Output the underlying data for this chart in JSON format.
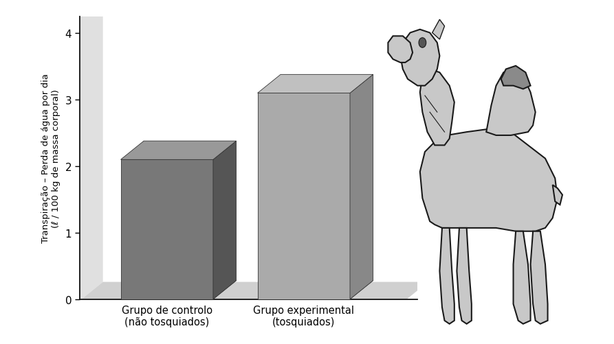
{
  "categories": [
    "Grupo de controlo\n(não tosquiados)",
    "Grupo experimental\n(tosquiados)"
  ],
  "values": [
    2.1,
    3.1
  ],
  "bar_face_colors": [
    "#787878",
    "#aaaaaa"
  ],
  "bar_top_colors": [
    "#999999",
    "#c0c0c0"
  ],
  "bar_side_colors": [
    "#555555",
    "#888888"
  ],
  "background_fig": "#ffffff",
  "background_ax": "#ffffff",
  "wall_color": "#e0e0e0",
  "floor_color": "#d0d0d0",
  "ylabel_line1": "Transpiração – Perda de água por dia",
  "ylabel_line2": "(ℓ / 100 kg de massa corporal)",
  "ylim_max": 4.25,
  "yticks": [
    0,
    1,
    2,
    3,
    4
  ],
  "bar_width": 0.52,
  "depth_x": 0.13,
  "depth_y": 0.28,
  "positions": [
    0.28,
    1.05
  ],
  "xlim_min": 0.05,
  "xlim_max": 1.95,
  "camel_color": "#c8c8c8",
  "camel_outline": "#1a1a1a",
  "camel_dark": "#8a8a8a"
}
